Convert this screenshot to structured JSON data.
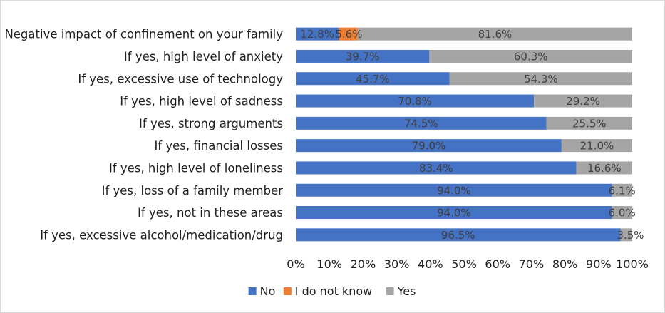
{
  "chart_data": {
    "type": "bar",
    "orientation": "horizontal",
    "stacked": "percent",
    "categories": [
      "Negative impact of confinement on your family",
      "If yes, high level of anxiety",
      "If yes, excessive use of technology",
      "If yes, high level of sadness",
      "If yes, strong arguments",
      "If yes, financial losses",
      "If yes, high level of loneliness",
      "If yes, loss of a family member",
      "If yes, not in these areas",
      "If yes, excessive alcohol/medication/drug"
    ],
    "series": [
      {
        "name": "No",
        "color": "#4472c4",
        "values": [
          12.8,
          39.7,
          45.7,
          70.8,
          74.5,
          79.0,
          83.4,
          94.0,
          94.0,
          96.5
        ],
        "labels": [
          "12.8%",
          "39.7%",
          "45.7%",
          "70.8%",
          "74.5%",
          "79.0%",
          "83.4%",
          "94.0%",
          "94.0%",
          "96.5%"
        ]
      },
      {
        "name": "I do not know",
        "color": "#ed7d31",
        "values": [
          5.6,
          0,
          0,
          0,
          0,
          0,
          0,
          0,
          0,
          0
        ],
        "labels": [
          "5.6%",
          "",
          "",
          "",
          "",
          "",
          "",
          "",
          "",
          ""
        ]
      },
      {
        "name": "Yes",
        "color": "#a5a5a5",
        "values": [
          81.6,
          60.3,
          54.3,
          29.2,
          25.5,
          21.0,
          16.6,
          6.1,
          6.0,
          3.5
        ],
        "labels": [
          "81.6%",
          "60.3%",
          "54.3%",
          "29.2%",
          "25.5%",
          "21.0%",
          "16.6%",
          "6.1%",
          "6.0%",
          "3.5%"
        ]
      }
    ],
    "x_ticks": [
      "0%",
      "10%",
      "20%",
      "30%",
      "40%",
      "50%",
      "60%",
      "70%",
      "80%",
      "90%",
      "100%"
    ],
    "xlim": [
      0,
      100
    ],
    "grid": false,
    "legend_position": "bottom",
    "title": "",
    "xlabel": "",
    "ylabel": ""
  }
}
